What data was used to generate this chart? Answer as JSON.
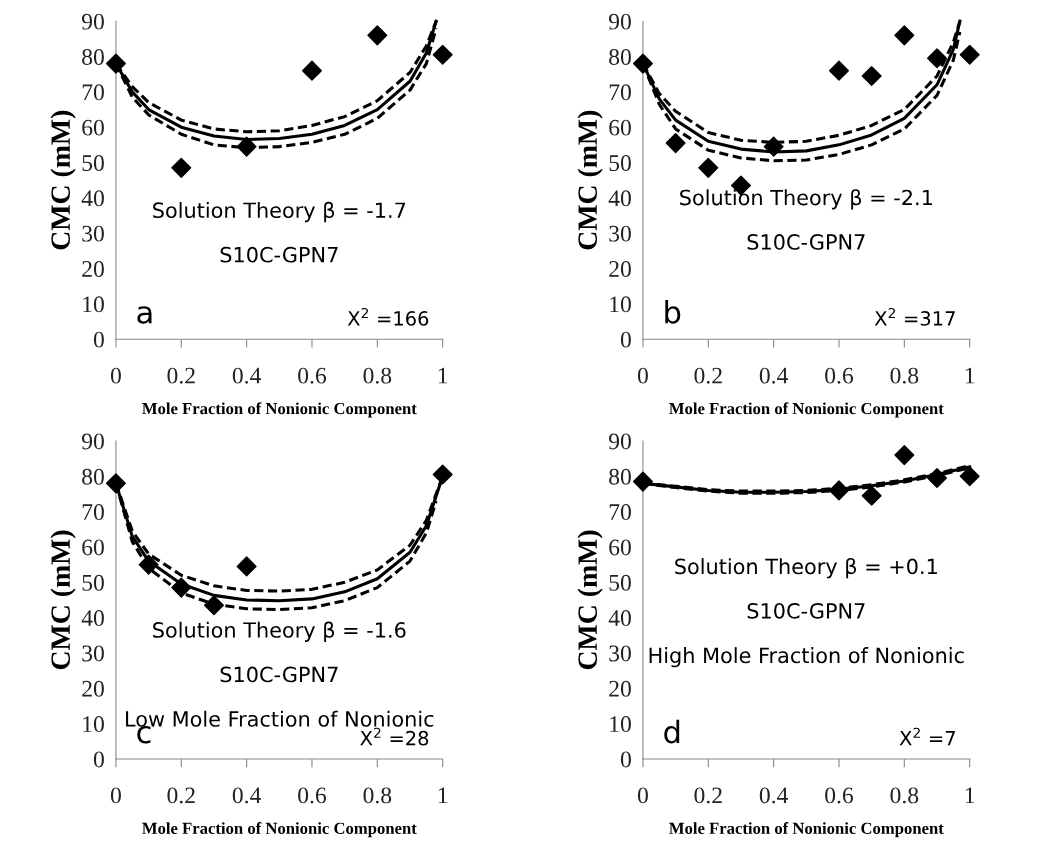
{
  "chart_data": [
    {
      "type": "scatter",
      "xlabel": "Mole Fraction of Nonionic Component",
      "ylabel": "CMC (mM)",
      "xlim": [
        0,
        1
      ],
      "ylim": [
        0,
        90
      ],
      "xticks": [
        0,
        0.2,
        0.4,
        0.6,
        0.8,
        1
      ],
      "yticks": [
        0,
        10,
        20,
        30,
        40,
        50,
        60,
        70,
        80,
        90
      ],
      "grid": false,
      "legend": false,
      "annotations": [
        "a",
        "Solution Theory β = -1.7",
        "S10C-GPN7",
        "X$^{2}$ =166"
      ],
      "series": [
        {
          "type": "line",
          "line_style": "solid",
          "marker": "none",
          "color": "#000000",
          "x": [
            0,
            0.05,
            0.1,
            0.2,
            0.3,
            0.4,
            0.5,
            0.6,
            0.7,
            0.8,
            0.9,
            0.95,
            0.98
          ],
          "values": [
            78,
            70,
            65,
            60,
            57.5,
            56.5,
            56.8,
            58,
            60.5,
            65,
            73,
            81,
            90
          ]
        },
        {
          "type": "line",
          "line_style": "dashed",
          "marker": "none",
          "color": "#000000",
          "x": [
            0,
            0.05,
            0.1,
            0.2,
            0.3,
            0.4,
            0.5,
            0.6,
            0.7,
            0.8,
            0.9,
            0.95,
            0.98
          ],
          "values": [
            78,
            71.5,
            67,
            62,
            59.5,
            58.7,
            59,
            60.5,
            63,
            67.5,
            75.5,
            83,
            90
          ]
        },
        {
          "type": "line",
          "line_style": "dashed",
          "marker": "none",
          "color": "#000000",
          "x": [
            0,
            0.05,
            0.1,
            0.2,
            0.3,
            0.4,
            0.5,
            0.6,
            0.7,
            0.8,
            0.9,
            0.95,
            0.98
          ],
          "values": [
            78,
            68.5,
            63.5,
            58,
            55,
            54.2,
            54.5,
            55.7,
            58,
            62.5,
            70.5,
            78,
            88
          ]
        },
        {
          "type": "scatter",
          "marker": "diamond",
          "color": "#000000",
          "x": [
            0,
            0.2,
            0.4,
            0.6,
            0.8,
            1
          ],
          "values": [
            78,
            48.5,
            54.5,
            76,
            86,
            80.5
          ]
        }
      ]
    },
    {
      "type": "scatter",
      "xlabel": "Mole Fraction of Nonionic Component",
      "ylabel": "CMC (mM)",
      "xlim": [
        0,
        1
      ],
      "ylim": [
        0,
        90
      ],
      "xticks": [
        0,
        0.2,
        0.4,
        0.6,
        0.8,
        1
      ],
      "yticks": [
        0,
        10,
        20,
        30,
        40,
        50,
        60,
        70,
        80,
        90
      ],
      "grid": false,
      "legend": false,
      "annotations": [
        "b",
        "Solution Theory β = -2.1",
        "S10C-GPN7",
        "X$^{2}$ =317"
      ],
      "series": [
        {
          "type": "line",
          "line_style": "solid",
          "marker": "none",
          "color": "#000000",
          "x": [
            0,
            0.05,
            0.1,
            0.2,
            0.3,
            0.4,
            0.5,
            0.6,
            0.7,
            0.8,
            0.9,
            0.95,
            0.97
          ],
          "values": [
            78,
            68,
            62,
            56,
            53.8,
            53,
            53.3,
            55,
            57.8,
            62.5,
            72,
            82,
            90
          ]
        },
        {
          "type": "line",
          "line_style": "dashed",
          "marker": "none",
          "color": "#000000",
          "x": [
            0,
            0.05,
            0.1,
            0.2,
            0.3,
            0.4,
            0.5,
            0.6,
            0.7,
            0.8,
            0.9,
            0.95,
            0.97
          ],
          "values": [
            78,
            69.5,
            64.5,
            58.5,
            56.3,
            55.7,
            56,
            57.7,
            60.5,
            65,
            74.5,
            84,
            90
          ]
        },
        {
          "type": "line",
          "line_style": "dashed",
          "marker": "none",
          "color": "#000000",
          "x": [
            0,
            0.05,
            0.1,
            0.2,
            0.3,
            0.4,
            0.5,
            0.6,
            0.7,
            0.8,
            0.9,
            0.95,
            0.97
          ],
          "values": [
            78,
            66.5,
            59.5,
            53.5,
            51.3,
            50.5,
            50.7,
            52.3,
            55,
            59.5,
            69,
            79,
            87
          ]
        },
        {
          "type": "scatter",
          "marker": "diamond",
          "color": "#000000",
          "x": [
            0,
            0.1,
            0.2,
            0.3,
            0.4,
            0.6,
            0.7,
            0.8,
            0.9,
            1
          ],
          "values": [
            78,
            55.5,
            48.5,
            43.5,
            54.5,
            76,
            74.5,
            86,
            79.5,
            80.5
          ]
        }
      ]
    },
    {
      "type": "scatter",
      "xlabel": "Mole Fraction of Nonionic Component",
      "ylabel": "CMC (mM)",
      "xlim": [
        0,
        1
      ],
      "ylim": [
        0,
        90
      ],
      "xticks": [
        0,
        0.2,
        0.4,
        0.6,
        0.8,
        1
      ],
      "yticks": [
        0,
        10,
        20,
        30,
        40,
        50,
        60,
        70,
        80,
        90
      ],
      "grid": false,
      "legend": false,
      "annotations": [
        "c",
        "Solution Theory β = -1.6",
        "S10C-GPN7",
        "Low Mole Fraction of Nonionic",
        "X$^{2}$ =28"
      ],
      "series": [
        {
          "type": "line",
          "line_style": "solid",
          "marker": "none",
          "color": "#000000",
          "x": [
            0,
            0.05,
            0.1,
            0.2,
            0.3,
            0.4,
            0.5,
            0.6,
            0.7,
            0.8,
            0.9,
            0.95,
            1
          ],
          "values": [
            78,
            63,
            56,
            49.5,
            46.3,
            45,
            44.8,
            45.3,
            47.3,
            51,
            58.5,
            66,
            80
          ]
        },
        {
          "type": "line",
          "line_style": "dashed",
          "marker": "none",
          "color": "#000000",
          "x": [
            0,
            0.05,
            0.1,
            0.2,
            0.3,
            0.4,
            0.5,
            0.6,
            0.7,
            0.8,
            0.9,
            0.95,
            1
          ],
          "values": [
            78,
            64.5,
            58,
            52,
            49,
            47.7,
            47.5,
            48,
            50,
            53.5,
            60.5,
            67.5,
            80
          ]
        },
        {
          "type": "line",
          "line_style": "dashed",
          "marker": "none",
          "color": "#000000",
          "x": [
            0,
            0.05,
            0.1,
            0.2,
            0.3,
            0.4,
            0.5,
            0.6,
            0.7,
            0.8,
            0.9,
            0.95,
            0.98
          ],
          "values": [
            78,
            61.5,
            54,
            47,
            43.8,
            42.5,
            42.3,
            42.8,
            44.8,
            48.5,
            56,
            64,
            73
          ]
        },
        {
          "type": "scatter",
          "marker": "diamond",
          "color": "#000000",
          "x": [
            0,
            0.1,
            0.2,
            0.3,
            0.4,
            1
          ],
          "values": [
            78,
            55,
            48.5,
            43.5,
            54.5,
            80.5
          ]
        }
      ]
    },
    {
      "type": "scatter",
      "xlabel": "Mole Fraction of Nonionic Component",
      "ylabel": "CMC (mM)",
      "xlim": [
        0,
        1
      ],
      "ylim": [
        0,
        90
      ],
      "xticks": [
        0,
        0.2,
        0.4,
        0.6,
        0.8,
        1
      ],
      "yticks": [
        0,
        10,
        20,
        30,
        40,
        50,
        60,
        70,
        80,
        90
      ],
      "grid": false,
      "legend": false,
      "annotations": [
        "d",
        "Solution Theory β = +0.1",
        "S10C-GPN7",
        "High Mole Fraction of Nonionic",
        "X$^{2}$ =7"
      ],
      "series": [
        {
          "type": "line",
          "line_style": "solid",
          "marker": "none",
          "color": "#000000",
          "x": [
            0,
            0.1,
            0.2,
            0.3,
            0.4,
            0.5,
            0.6,
            0.7,
            0.8,
            0.9,
            1
          ],
          "values": [
            78,
            77,
            76,
            75.5,
            75.5,
            75.7,
            76.3,
            77.3,
            78.7,
            80.5,
            82.7
          ]
        },
        {
          "type": "line",
          "line_style": "dashed",
          "marker": "none",
          "color": "#000000",
          "x": [
            0,
            0.1,
            0.2,
            0.3,
            0.4,
            0.5,
            0.6,
            0.7,
            0.8,
            0.9,
            1
          ],
          "values": [
            78,
            77.2,
            76.2,
            75.8,
            75.8,
            76,
            76.6,
            77.6,
            79,
            80.8,
            83
          ]
        },
        {
          "type": "line",
          "line_style": "dashed",
          "marker": "none",
          "color": "#000000",
          "x": [
            0,
            0.1,
            0.2,
            0.3,
            0.4,
            0.5,
            0.6,
            0.7,
            0.8,
            0.9,
            1
          ],
          "values": [
            78,
            76.8,
            75.8,
            75.2,
            75.2,
            75.4,
            76,
            77,
            78.4,
            80.2,
            82.4
          ]
        },
        {
          "type": "scatter",
          "marker": "diamond",
          "color": "#000000",
          "x": [
            0,
            0.6,
            0.7,
            0.8,
            0.9,
            1
          ],
          "values": [
            78.5,
            76,
            74.5,
            86,
            79.5,
            80
          ]
        }
      ]
    }
  ]
}
